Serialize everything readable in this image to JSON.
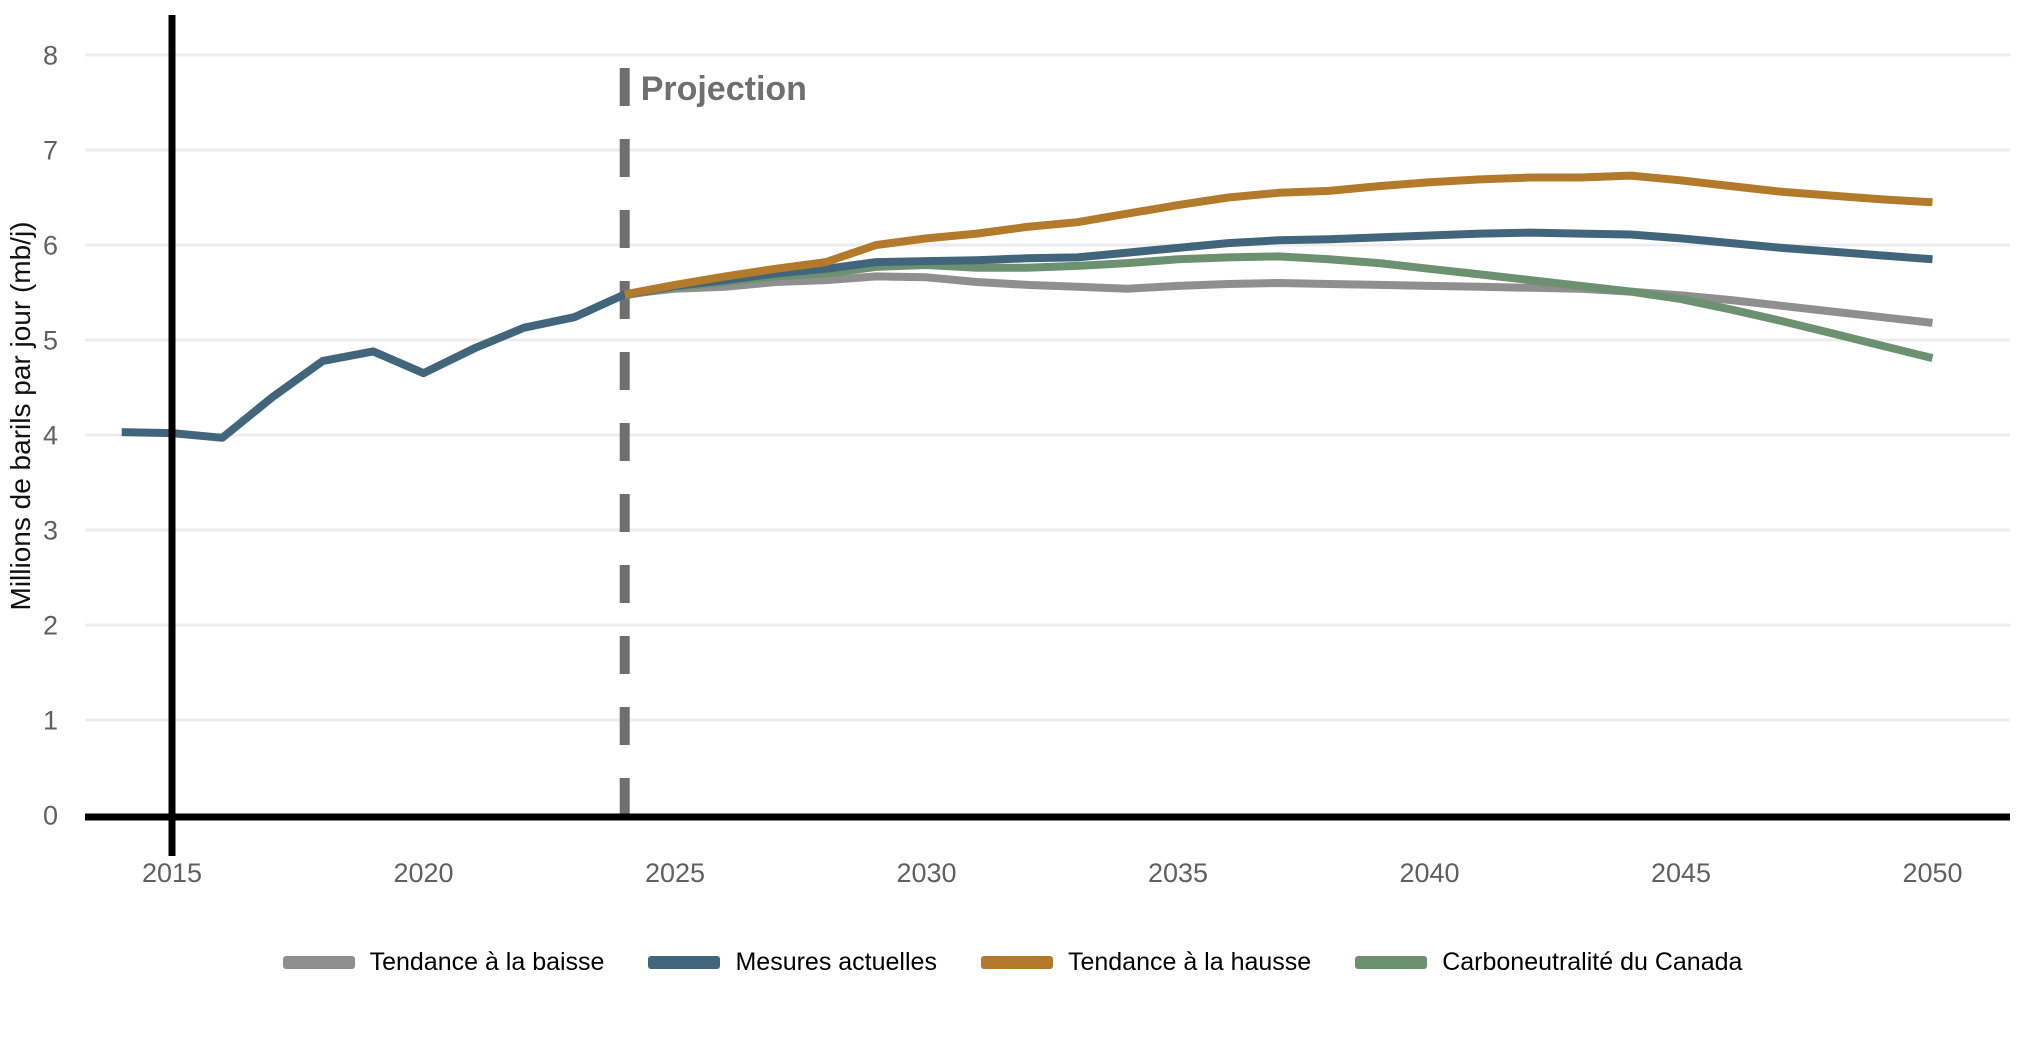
{
  "chart_data": {
    "type": "line",
    "title": "",
    "xlabel": "",
    "ylabel": "Millions de barils par jour (mb/j)",
    "projection_label": "Projection",
    "projection_start_year": 2024,
    "xlim": [
      2013.3,
      2051.6
    ],
    "ylim": [
      0,
      8.4
    ],
    "grid": "horizontal",
    "legend_position": "bottom-center",
    "x_ticks": [
      2015,
      2020,
      2025,
      2030,
      2035,
      2040,
      2045,
      2050
    ],
    "y_ticks": [
      0,
      1,
      2,
      3,
      4,
      5,
      6,
      7,
      8
    ],
    "colors": {
      "axis": "#000000",
      "gridline": "#ececec",
      "tick_text": "#606060",
      "projection": "#6f6f6f",
      "axis_title_text": "#111111"
    },
    "draw_order": [
      0,
      3,
      1,
      2
    ],
    "series": [
      {
        "name": "Tendance à la baisse",
        "color": "#8f8f8f",
        "points": [
          [
            2024,
            5.48
          ],
          [
            2025,
            5.54
          ],
          [
            2026,
            5.56
          ],
          [
            2027,
            5.61
          ],
          [
            2028,
            5.63
          ],
          [
            2029,
            5.67
          ],
          [
            2030,
            5.66
          ],
          [
            2031,
            5.61
          ],
          [
            2032,
            5.58
          ],
          [
            2033,
            5.56
          ],
          [
            2034,
            5.54
          ],
          [
            2035,
            5.57
          ],
          [
            2036,
            5.59
          ],
          [
            2037,
            5.6
          ],
          [
            2038,
            5.59
          ],
          [
            2039,
            5.58
          ],
          [
            2040,
            5.57
          ],
          [
            2041,
            5.56
          ],
          [
            2042,
            5.55
          ],
          [
            2043,
            5.54
          ],
          [
            2044,
            5.51
          ],
          [
            2045,
            5.47
          ],
          [
            2046,
            5.42
          ],
          [
            2047,
            5.36
          ],
          [
            2048,
            5.3
          ],
          [
            2049,
            5.24
          ],
          [
            2050,
            5.18
          ]
        ]
      },
      {
        "name": "Mesures actuelles",
        "color": "#41667c",
        "points": [
          [
            2014,
            4.03
          ],
          [
            2015,
            4.02
          ],
          [
            2016,
            3.97
          ],
          [
            2017,
            4.4
          ],
          [
            2018,
            4.78
          ],
          [
            2019,
            4.88
          ],
          [
            2020,
            4.65
          ],
          [
            2021,
            4.91
          ],
          [
            2022,
            5.13
          ],
          [
            2023,
            5.24
          ],
          [
            2024,
            5.48
          ],
          [
            2025,
            5.57
          ],
          [
            2026,
            5.63
          ],
          [
            2027,
            5.7
          ],
          [
            2028,
            5.75
          ],
          [
            2029,
            5.82
          ],
          [
            2030,
            5.83
          ],
          [
            2031,
            5.84
          ],
          [
            2032,
            5.86
          ],
          [
            2033,
            5.87
          ],
          [
            2034,
            5.92
          ],
          [
            2035,
            5.97
          ],
          [
            2036,
            6.02
          ],
          [
            2037,
            6.05
          ],
          [
            2038,
            6.06
          ],
          [
            2039,
            6.08
          ],
          [
            2040,
            6.1
          ],
          [
            2041,
            6.12
          ],
          [
            2042,
            6.13
          ],
          [
            2043,
            6.12
          ],
          [
            2044,
            6.11
          ],
          [
            2045,
            6.07
          ],
          [
            2046,
            6.02
          ],
          [
            2047,
            5.97
          ],
          [
            2048,
            5.93
          ],
          [
            2049,
            5.89
          ],
          [
            2050,
            5.85
          ]
        ]
      },
      {
        "name": "Tendance à la hausse",
        "color": "#b47a2c",
        "points": [
          [
            2024,
            5.48
          ],
          [
            2025,
            5.58
          ],
          [
            2026,
            5.67
          ],
          [
            2027,
            5.75
          ],
          [
            2028,
            5.82
          ],
          [
            2029,
            6.0
          ],
          [
            2030,
            6.07
          ],
          [
            2031,
            6.12
          ],
          [
            2032,
            6.19
          ],
          [
            2033,
            6.24
          ],
          [
            2034,
            6.33
          ],
          [
            2035,
            6.42
          ],
          [
            2036,
            6.5
          ],
          [
            2037,
            6.55
          ],
          [
            2038,
            6.57
          ],
          [
            2039,
            6.62
          ],
          [
            2040,
            6.66
          ],
          [
            2041,
            6.69
          ],
          [
            2042,
            6.71
          ],
          [
            2043,
            6.71
          ],
          [
            2044,
            6.73
          ],
          [
            2045,
            6.68
          ],
          [
            2046,
            6.62
          ],
          [
            2047,
            6.56
          ],
          [
            2048,
            6.52
          ],
          [
            2049,
            6.48
          ],
          [
            2050,
            6.45
          ]
        ]
      },
      {
        "name": "Carboneutralité du Canada",
        "color": "#6b9170",
        "points": [
          [
            2024,
            5.47
          ],
          [
            2025,
            5.56
          ],
          [
            2026,
            5.61
          ],
          [
            2027,
            5.67
          ],
          [
            2028,
            5.7
          ],
          [
            2029,
            5.77
          ],
          [
            2030,
            5.79
          ],
          [
            2031,
            5.76
          ],
          [
            2032,
            5.76
          ],
          [
            2033,
            5.78
          ],
          [
            2034,
            5.81
          ],
          [
            2035,
            5.85
          ],
          [
            2036,
            5.87
          ],
          [
            2037,
            5.88
          ],
          [
            2038,
            5.85
          ],
          [
            2039,
            5.81
          ],
          [
            2040,
            5.75
          ],
          [
            2041,
            5.69
          ],
          [
            2042,
            5.63
          ],
          [
            2043,
            5.57
          ],
          [
            2044,
            5.51
          ],
          [
            2045,
            5.43
          ],
          [
            2046,
            5.32
          ],
          [
            2047,
            5.2
          ],
          [
            2048,
            5.07
          ],
          [
            2049,
            4.94
          ],
          [
            2050,
            4.81
          ]
        ]
      }
    ]
  }
}
